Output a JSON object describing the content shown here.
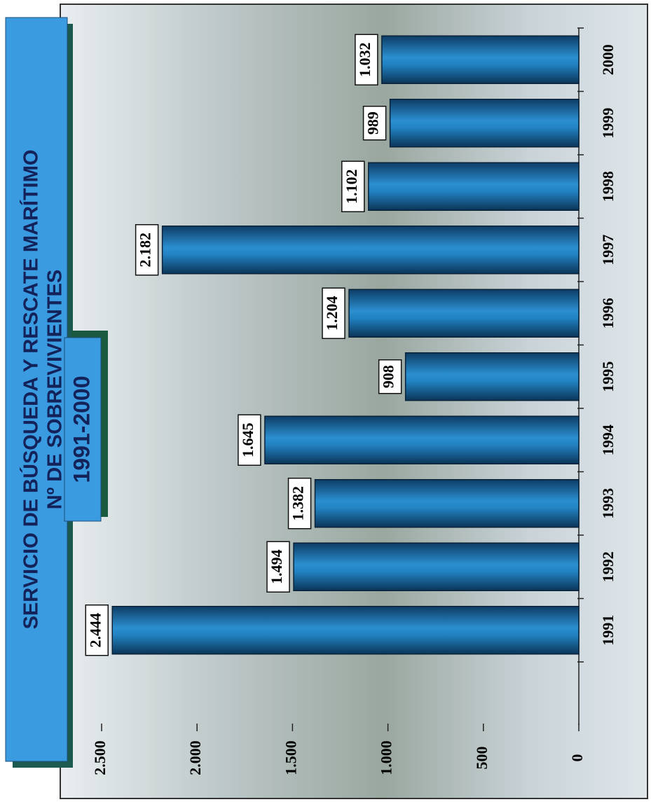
{
  "chart_data": {
    "type": "bar",
    "orientation": "horizontal",
    "title": "SERVICIO DE BÚSQUEDA Y RESCATE MARÍTIMO",
    "subtitle": "Nº DE SOBREVIVIENTES",
    "period": "1991-2000",
    "categories": [
      "1991",
      "1992",
      "1993",
      "1994",
      "1995",
      "1996",
      "1997",
      "1998",
      "1999",
      "2000"
    ],
    "values": [
      2444,
      1494,
      1382,
      1645,
      908,
      1204,
      2182,
      1102,
      989,
      1032
    ],
    "value_labels": [
      "2.444",
      "1.494",
      "1.382",
      "1.645",
      "908",
      "1.204",
      "2.182",
      "1.102",
      "989",
      "1.032"
    ],
    "color": "#1f78b8",
    "ylim": [
      0,
      2500
    ],
    "yticks": [
      0,
      500,
      {
        "value": 1000,
        "label": "1.000"
      },
      {
        "value": 1500,
        "label": "1.500"
      },
      {
        "value": 2000,
        "label": "2.000"
      },
      {
        "value": 2500,
        "label": "2.500"
      }
    ],
    "grid": false
  }
}
